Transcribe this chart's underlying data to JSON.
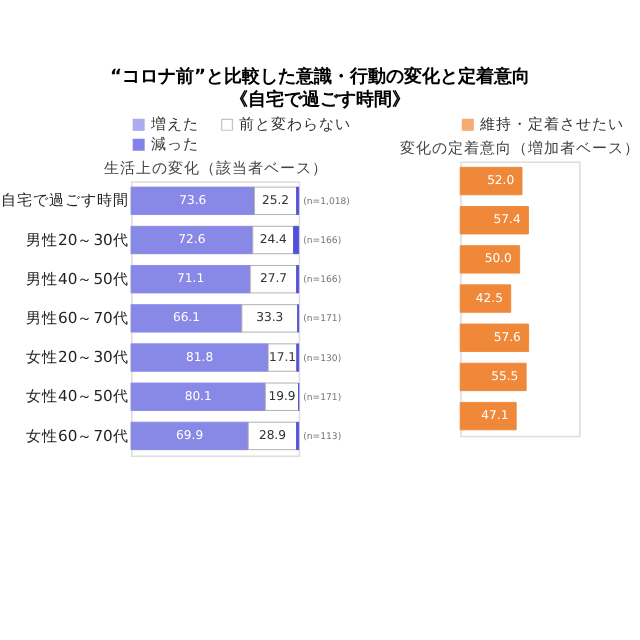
{
  "chart_data": [
    {
      "type": "bar",
      "orientation": "horizontal",
      "stacked": true,
      "title": "“コロナ前”と比較した意識・行動の変化と定着意向",
      "subtitle": "《自宅で過ごす時間》",
      "xlabel": "生活上の変化（該当者ベース）",
      "categories": [
        "自宅で過ごす時間",
        "男性20～30代",
        "男性40～50代",
        "男性60～70代",
        "女性20～30代",
        "女性40～50代",
        "女性60～70代"
      ],
      "series": [
        {
          "name": "増えた",
          "color": "#8888e6",
          "values": [
            73.6,
            72.6,
            71.1,
            66.1,
            81.8,
            80.1,
            69.9
          ],
          "value_labels": [
            "73.6",
            "72.6",
            "71.1",
            "66.1",
            "81.8",
            "80.1",
            "69.9"
          ]
        },
        {
          "name": "前と変わらない",
          "color": "#ffffff",
          "values": [
            25.2,
            24.4,
            27.7,
            33.3,
            17.1,
            19.9,
            28.9
          ],
          "value_labels": [
            "25.2",
            "24.4",
            "27.7",
            "33.3",
            "17.1",
            "19.9",
            "28.9"
          ]
        },
        {
          "name": "減った",
          "color": "#5050dd",
          "values": [
            1.2,
            3.0,
            1.2,
            0.6,
            1.1,
            0.0,
            1.2
          ],
          "value_labels": [
            null,
            null,
            null,
            null,
            null,
            null,
            null
          ]
        }
      ],
      "xlim": [
        0,
        100
      ],
      "legend": "top",
      "tick_labels": "y",
      "annotations": [
        "(n=1,018)",
        "(n=166)",
        "(n=166)",
        "(n=171)",
        "(n=130)",
        "(n=171)",
        "(n=113)"
      ]
    },
    {
      "type": "bar",
      "orientation": "horizontal",
      "xlabel": "変化の定着意向（増加者ベース）",
      "categories": [
        null,
        null,
        null,
        null,
        null,
        null,
        null
      ],
      "series": [
        {
          "name": "維持・定着させたい",
          "color": "#f0883a",
          "values": [
            52.0,
            57.4,
            50.0,
            42.5,
            57.6,
            55.5,
            47.1
          ],
          "value_labels": [
            "52.0",
            "57.4",
            "50.0",
            "42.5",
            "57.6",
            "55.5",
            "47.1"
          ]
        }
      ],
      "xlim": [
        0,
        100
      ],
      "legend": "top",
      "tick_labels": false
    }
  ]
}
